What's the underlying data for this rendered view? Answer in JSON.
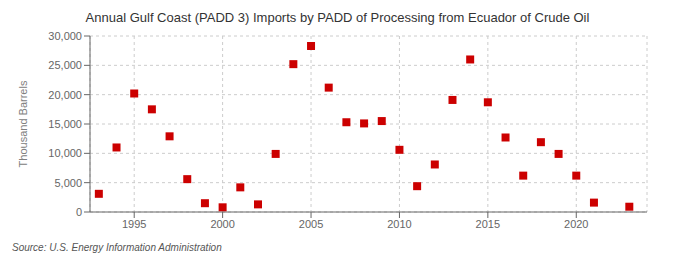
{
  "chart_data": {
    "type": "scatter",
    "title": "Annual Gulf Coast (PADD 3) Imports by PADD of Processing from Ecuador of Crude Oil",
    "ylabel": "Thousand Barrels",
    "source": "Source: U.S. Energy Information Administration",
    "x": [
      1993,
      1994,
      1995,
      1996,
      1997,
      1998,
      1999,
      2000,
      2001,
      2002,
      2003,
      2004,
      2005,
      2006,
      2007,
      2008,
      2009,
      2010,
      2011,
      2012,
      2013,
      2014,
      2015,
      2016,
      2017,
      2018,
      2019,
      2020,
      2021,
      2023
    ],
    "values": [
      3100,
      11000,
      20200,
      17500,
      12900,
      5600,
      1500,
      800,
      4200,
      1300,
      9900,
      25200,
      28300,
      21200,
      15300,
      15100,
      15500,
      10600,
      4400,
      8100,
      19100,
      26000,
      18700,
      12700,
      6200,
      11900,
      9900,
      6200,
      1600,
      900
    ],
    "color": "#cc0000",
    "marker": "square",
    "xlim": [
      1992.5,
      2024
    ],
    "xticks": [
      1995,
      2000,
      2005,
      2010,
      2015,
      2020
    ],
    "ylim": [
      0,
      30000
    ],
    "yticks": [
      0,
      {
        "value": 5000,
        "label": "5,000"
      },
      {
        "value": 10000,
        "label": "10,000"
      },
      {
        "value": 15000,
        "label": "15,000"
      },
      {
        "value": 20000,
        "label": "20,000"
      },
      {
        "value": 25000,
        "label": "25,000"
      },
      {
        "value": 30000,
        "label": "30,000"
      }
    ],
    "grid": true
  }
}
